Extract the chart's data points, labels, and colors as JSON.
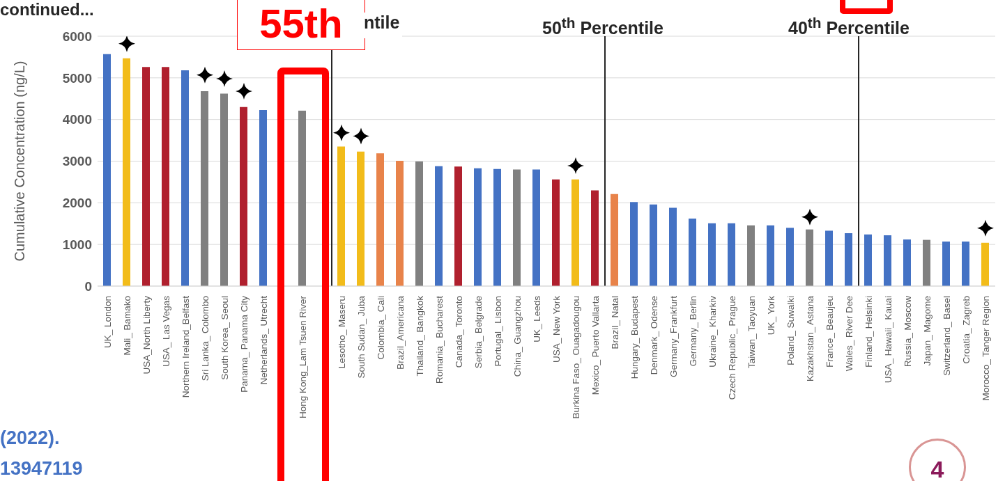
{
  "chart_data": {
    "type": "bar",
    "title": "continued...",
    "ylabel": "Cumulative Concentration (ng/L)",
    "categories": [
      "UK_ London",
      "Mali_ Bamako",
      "USA_North Liberty",
      "USA_ Las Vegas",
      "Northern Ireland_Belfast",
      "Sri Lanka_ Colombo",
      "South Korea_ Seoul",
      "Panama_ Panama City",
      "Netherlands_ Utrecht",
      null,
      "Hong Kong_Lam Tsuen River",
      null,
      "Lesotho_ Maseru",
      "South Sudan_ Juba",
      "Colombia_ Cali",
      "Brazil_Americana",
      "Thailand_ Bangkok",
      "Romania_ Bucharest",
      "Canada_ Toronto",
      "Serbia_ Belgrade",
      "Portugal_ Lisbon",
      "China_ Guangzhou",
      "UK_ Leeds",
      "USA_ New York",
      "Burkina Faso_ Ouagadougou",
      "Mexico_ Puerto Vallarta",
      "Brazil_ Natal",
      "Hungary_ Budapest",
      "Denmark_ Odense",
      "Germany_Frankfurt",
      "Germany_ Berlin",
      "Ukraine_ Kharkiv",
      "Czech Republic_ Prague",
      "Taiwan_ Taoyuan",
      "UK_ York",
      "Poland_ Suwalki",
      "Kazakhstan_ Astana",
      "France_ Beaujeu",
      "Wales_ River Dee",
      "Finland_ Helsinki",
      "USA_ Hawaii_ Kauai",
      "Russia_ Moscow",
      "Japan_ Magome",
      "Switzerland_ Basel",
      "Croatia_ Zagreb",
      "Morocco_ Tanger Region"
    ],
    "series": [
      {
        "values": [
          5570,
          5470,
          5260,
          5260,
          5180,
          4680,
          4620,
          4300,
          4230,
          null,
          4210,
          null,
          3350,
          3230,
          3190,
          3010,
          2990,
          2880,
          2870,
          2830,
          2810,
          2800,
          2800,
          2560,
          2560,
          2300,
          2210,
          2020,
          1960,
          1880,
          1620,
          1510,
          1510,
          1460,
          1460,
          1400,
          1360,
          1330,
          1270,
          1240,
          1220,
          1120,
          1110,
          1070,
          1070,
          1040
        ],
        "colors": [
          "#4472c4",
          "#f2bc1a",
          "#b0202e",
          "#b0202e",
          "#4472c4",
          "#808080",
          "#808080",
          "#b0202e",
          "#4472c4",
          "#808080",
          "#808080",
          "#808080",
          "#f2bc1a",
          "#f2bc1a",
          "#e8834a",
          "#e8834a",
          "#808080",
          "#4472c4",
          "#b0202e",
          "#4472c4",
          "#4472c4",
          "#808080",
          "#4472c4",
          "#b0202e",
          "#f2bc1a",
          "#b0202e",
          "#e8834a",
          "#4472c4",
          "#4472c4",
          "#4472c4",
          "#4472c4",
          "#4472c4",
          "#4472c4",
          "#808080",
          "#4472c4",
          "#4472c4",
          "#808080",
          "#4472c4",
          "#4472c4",
          "#4472c4",
          "#4472c4",
          "#4472c4",
          "#808080",
          "#4472c4",
          "#4472c4",
          "#f2bc1a"
        ]
      },
      {
        "type": "scatter",
        "color": "#000000",
        "marker": "star",
        "values": [
          null,
          5820,
          null,
          null,
          null,
          5070,
          4980,
          4680,
          null,
          null,
          null,
          null,
          3680,
          3600,
          null,
          null,
          null,
          null,
          null,
          null,
          null,
          null,
          null,
          null,
          2890,
          null,
          null,
          null,
          null,
          null,
          null,
          null,
          null,
          null,
          null,
          null,
          1660,
          null,
          null,
          null,
          null,
          null,
          null,
          null,
          null,
          1390
        ]
      }
    ],
    "ylim": [
      0,
      6000
    ],
    "yticks": [
      0,
      1000,
      2000,
      3000,
      4000,
      5000,
      6000
    ],
    "grid": "y",
    "annotations": [
      "55th",
      "ntile",
      "50$^{th}$ Percentile",
      "40$^{th}$ Percentile",
      "(2022).",
      "13947119",
      "4"
    ]
  }
}
